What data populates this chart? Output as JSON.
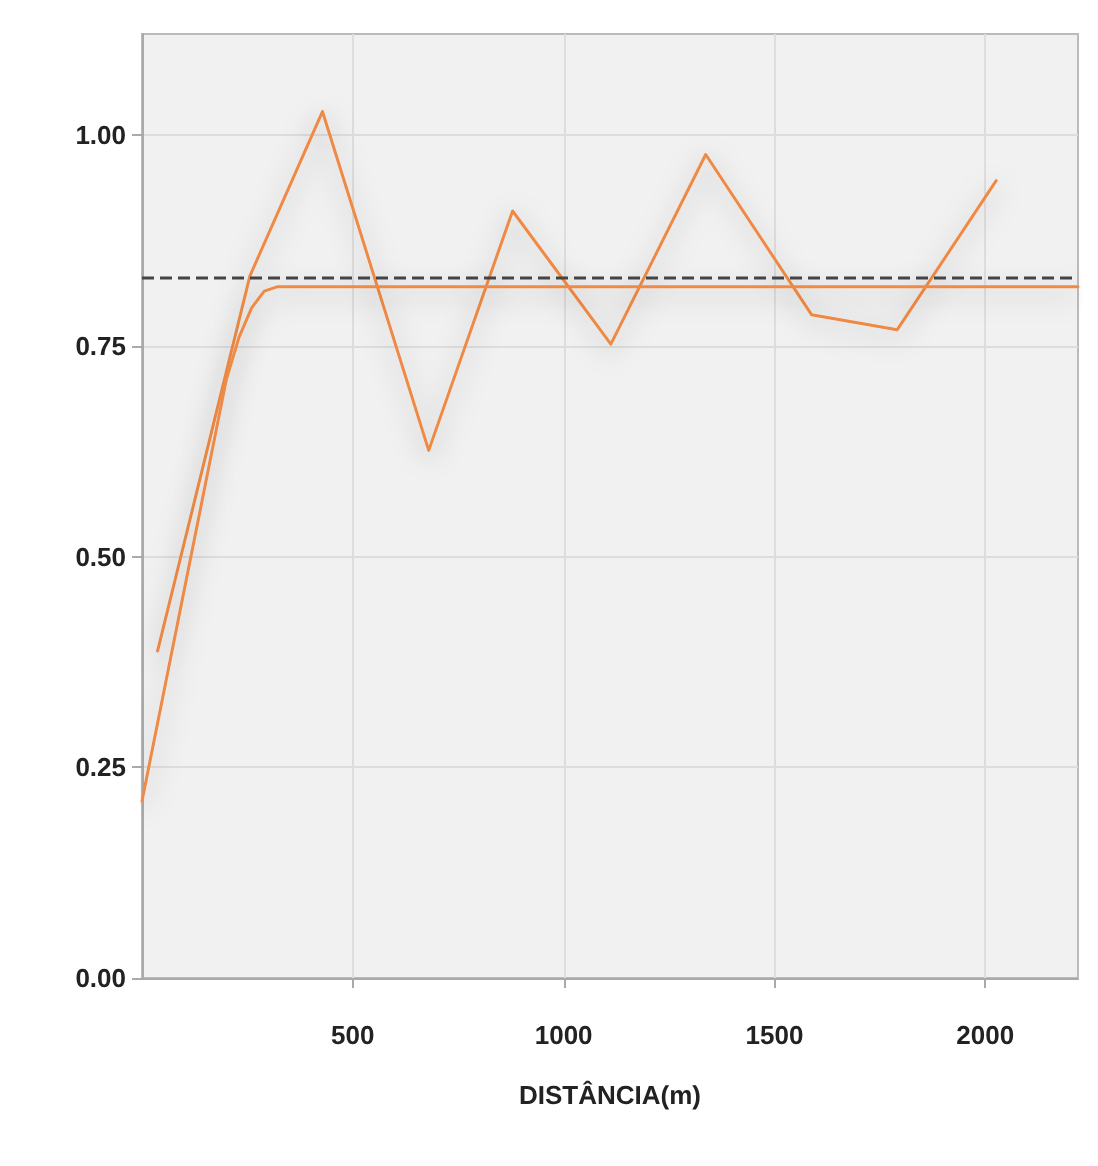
{
  "chart_data": {
    "type": "line",
    "xlabel": "DISTÂNCIA(m)",
    "xlim": [
      0,
      2220
    ],
    "xticks": [
      500,
      1000,
      1500,
      2000
    ],
    "ylim": [
      0,
      1.12
    ],
    "yticks": [
      {
        "value": 0,
        "label": "0.00"
      },
      {
        "value": 0.25,
        "label": "0.25"
      },
      {
        "value": 0.5,
        "label": "0.50"
      },
      {
        "value": 0.75,
        "label": "0.75"
      },
      {
        "value": 1,
        "label": "1.00"
      }
    ],
    "grid": true,
    "marker": "none",
    "line_style": "solid",
    "series": [
      {
        "color": "#ee8a45",
        "x": [
          37,
          256,
          428,
          680,
          879,
          1112,
          1337,
          1588,
          1791,
          2026
        ],
        "values": [
          0.388,
          0.833,
          1.028,
          0.626,
          0.91,
          0.752,
          0.977,
          0.787,
          0.769,
          0.946
        ]
      },
      {
        "color": "#ee8a45",
        "x": [
          0,
          100,
          200,
          230,
          260,
          290,
          320,
          2220
        ],
        "values": [
          0.21,
          0.46,
          0.71,
          0.76,
          0.795,
          0.815,
          0.82,
          0.82
        ]
      }
    ],
    "ref_lines": [
      {
        "axis": "y",
        "value": 0.833,
        "color": "#444444",
        "line_style": "dashed"
      }
    ]
  }
}
